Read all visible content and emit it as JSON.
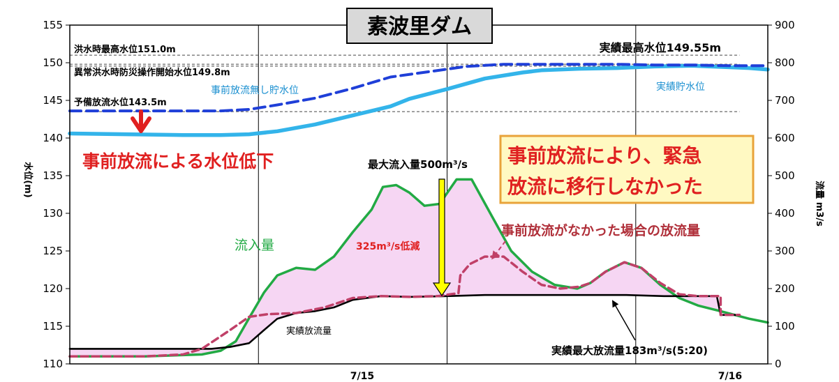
{
  "chart_data": {
    "type": "line",
    "title": "素波里ダム",
    "xlabel": "",
    "ylabel": "水位(m)",
    "y2label": "流量 m3/s",
    "xticks": [
      "7/15",
      "7/16"
    ],
    "ylim": [
      110,
      155
    ],
    "y2lim": [
      0,
      900
    ],
    "yticks": [
      110,
      115,
      120,
      125,
      130,
      135,
      140,
      145,
      150,
      155
    ],
    "y2ticks": [
      0,
      100,
      200,
      300,
      400,
      500,
      600,
      700,
      800,
      900
    ],
    "grid": "vertical",
    "series": [
      {
        "name": "実績貯水位",
        "axis": "left",
        "color": "#33b4ea",
        "style": "solid",
        "x": [
          0,
          3,
          6,
          8,
          9.5,
          11,
          13,
          15,
          17,
          18,
          20,
          22,
          24,
          25,
          27,
          29,
          31,
          33,
          34,
          36,
          37
        ],
        "values": [
          140.6,
          140.5,
          140.4,
          140.4,
          140.5,
          140.9,
          141.8,
          143,
          144.2,
          145.2,
          146.5,
          147.9,
          148.7,
          149.0,
          149.2,
          149.3,
          149.5,
          149.6,
          149.5,
          149.3,
          149.1
        ]
      },
      {
        "name": "事前放流無し貯水位",
        "axis": "left",
        "color": "#1f3fd8",
        "style": "dashed",
        "x": [
          0,
          3,
          6,
          8,
          9.5,
          11,
          13,
          15,
          17,
          19,
          21,
          23,
          25,
          27,
          29,
          31,
          33,
          35,
          37
        ],
        "values": [
          143.6,
          143.6,
          143.6,
          143.6,
          143.8,
          144.4,
          145.3,
          146.6,
          148.1,
          148.8,
          149.5,
          149.8,
          149.8,
          149.8,
          149.8,
          149.7,
          149.7,
          149.6,
          149.6
        ]
      },
      {
        "name": "流入量",
        "axis": "right",
        "color": "#22aa44",
        "style": "solid",
        "x": [
          0,
          4,
          7,
          8,
          8.8,
          9.6,
          10.3,
          11,
          12,
          13,
          14,
          15,
          16,
          16.6,
          17.3,
          18,
          18.8,
          19.6,
          20.5,
          21.3,
          22.4,
          23.4,
          24.5,
          25.7,
          26.9,
          27.6,
          28.4,
          29.4,
          30.3,
          31.3,
          32.3,
          33.3,
          34.5,
          36,
          37
        ],
        "values": [
          20,
          20,
          25,
          35,
          60,
          130,
          190,
          235,
          255,
          250,
          285,
          350,
          410,
          470,
          475,
          455,
          420,
          425,
          490,
          490,
          390,
          300,
          245,
          210,
          200,
          215,
          245,
          270,
          255,
          210,
          175,
          155,
          140,
          120,
          110
        ]
      },
      {
        "name": "事前放流がなかった場合の放流量",
        "axis": "right",
        "color": "#c04068",
        "style": "dashed",
        "x": [
          0,
          4,
          6,
          7,
          8.5,
          9.5,
          10.5,
          12,
          13.5,
          15,
          16.5,
          18,
          19.5,
          20.6,
          20.7,
          21.2,
          22,
          23,
          24,
          25,
          26,
          27,
          27.6,
          28.4,
          29.4,
          30.3,
          31.3,
          32.3,
          33.3,
          34.5,
          34.5,
          35.5
        ],
        "values": [
          20,
          20,
          25,
          40,
          90,
          125,
          132,
          135,
          150,
          175,
          180,
          178,
          180,
          188,
          235,
          265,
          285,
          285,
          245,
          210,
          200,
          205,
          215,
          245,
          270,
          255,
          215,
          185,
          180,
          180,
          130,
          130
        ]
      },
      {
        "name": "実績放流量",
        "axis": "right",
        "color": "#000000",
        "style": "solid",
        "x": [
          0,
          4,
          6,
          7.5,
          8.5,
          9.5,
          10.3,
          11,
          12,
          13,
          14,
          15,
          16.5,
          18,
          20,
          22,
          24,
          26,
          28,
          29.5,
          31.5,
          33.5,
          34.3,
          34.5,
          35.5
        ],
        "values": [
          40,
          40,
          40,
          40,
          45,
          55,
          90,
          120,
          135,
          140,
          150,
          170,
          180,
          178,
          180,
          183,
          183,
          183,
          183,
          183,
          180,
          180,
          180,
          130,
          130
        ]
      }
    ],
    "reference_lines": [
      {
        "label": "洪水時最高水位151.0m",
        "value": 151.0,
        "color": "#777777"
      },
      {
        "label": "実績最高水位149.55m",
        "value": 149.55,
        "color": "#777777"
      },
      {
        "label": "異常洪水時防災操作開始水位149.8m",
        "value": 149.8,
        "color": "#777777"
      },
      {
        "label": "予備放流水位143.5m",
        "value": 143.5,
        "color": "#777777"
      }
    ],
    "annotations": {
      "pre_release_drop": "事前放流による水位低下",
      "emergency_box": [
        "事前放流により、緊急",
        "放流に移行しなかった"
      ],
      "max_inflow": "最大流入量500m³/s",
      "reduction": "325m³/s低減",
      "actual_max_release": "実績最大放流量183m³/s(5:20)"
    },
    "colors": {
      "reference_line": "#777777",
      "red_annotation": "#e02020",
      "arrow_fill": "#ffff00",
      "box_fill": "#fff9c2",
      "box_border": "#e8a33a",
      "shade": "#f6d6f3"
    }
  }
}
